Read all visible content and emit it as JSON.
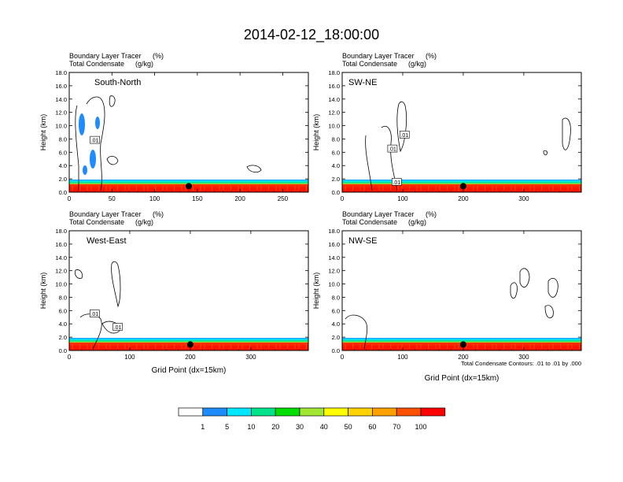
{
  "title": "2014-02-12_18:00:00",
  "panel_header": {
    "line1_label": "Boundary Layer Tracer",
    "line1_unit": "(%)",
    "line2_label": "Total Condensate",
    "line2_unit": "(g/kg)"
  },
  "contour_note": "Total Condensate Contours: .01 to .01 by .000",
  "colorbar": {
    "levels": [
      "1",
      "5",
      "10",
      "20",
      "30",
      "40",
      "50",
      "60",
      "70",
      "100"
    ],
    "colors": [
      "#ffffff",
      "#1e8cff",
      "#00e8ff",
      "#00e38a",
      "#00dd00",
      "#a0e632",
      "#ffff00",
      "#ffd200",
      "#ffa000",
      "#ff5000",
      "#ff0000"
    ]
  },
  "chart_data": [
    {
      "type": "heatmap",
      "panel_label": "South-North",
      "ylabel": "Height (km)",
      "xlabel": "",
      "xlim": [
        0,
        280
      ],
      "ylim": [
        0,
        18
      ],
      "xticks": [
        "0",
        "50",
        "100",
        "150",
        "200",
        "250"
      ],
      "yticks": [
        "0.0",
        "2.0",
        "4.0",
        "6.0",
        "8.0",
        "10.0",
        "12.0",
        "14.0",
        "16.0",
        "18.0"
      ],
      "contour_labels": [
        {
          "text": ".01",
          "x": 30,
          "y": 7.8
        }
      ],
      "marker_x": 140,
      "marker_y": 0.9
    },
    {
      "type": "heatmap",
      "panel_label": "SW-NE",
      "ylabel": "Height (km)",
      "xlabel": "",
      "xlim": [
        0,
        395
      ],
      "ylim": [
        0,
        18
      ],
      "xticks": [
        "0",
        "100",
        "200",
        "300"
      ],
      "yticks": [
        "0.0",
        "2.0",
        "4.0",
        "6.0",
        "8.0",
        "10.0",
        "12.0",
        "14.0",
        "16.0",
        "18.0"
      ],
      "contour_labels": [
        {
          "text": ".01",
          "x": 103,
          "y": 8.6
        },
        {
          "text": ".01",
          "x": 83,
          "y": 6.5
        },
        {
          "text": ".01",
          "x": 90,
          "y": 1.5
        }
      ],
      "marker_x": 200,
      "marker_y": 0.9
    },
    {
      "type": "heatmap",
      "panel_label": "West-East",
      "ylabel": "Height (km)",
      "xlabel": "Grid Point (dx=15km)",
      "xlim": [
        0,
        395
      ],
      "ylim": [
        0,
        18
      ],
      "xticks": [
        "0",
        "100",
        "200",
        "300"
      ],
      "yticks": [
        "0.0",
        "2.0",
        "4.0",
        "6.0",
        "8.0",
        "10.0",
        "12.0",
        "14.0",
        "16.0",
        "18.0"
      ],
      "contour_labels": [
        {
          "text": ".01",
          "x": 42,
          "y": 5.5
        },
        {
          "text": ".01",
          "x": 80,
          "y": 3.5
        }
      ],
      "marker_x": 200,
      "marker_y": 0.9
    },
    {
      "type": "heatmap",
      "panel_label": "NW-SE",
      "ylabel": "Height (km)",
      "xlabel": "Grid Point (dx=15km)",
      "xlim": [
        0,
        395
      ],
      "ylim": [
        0,
        18
      ],
      "xticks": [
        "0",
        "100",
        "200",
        "300"
      ],
      "yticks": [
        "0.0",
        "2.0",
        "4.0",
        "6.0",
        "8.0",
        "10.0",
        "12.0",
        "14.0",
        "16.0",
        "18.0"
      ],
      "contour_labels": [],
      "marker_x": 200,
      "marker_y": 0.9
    }
  ]
}
